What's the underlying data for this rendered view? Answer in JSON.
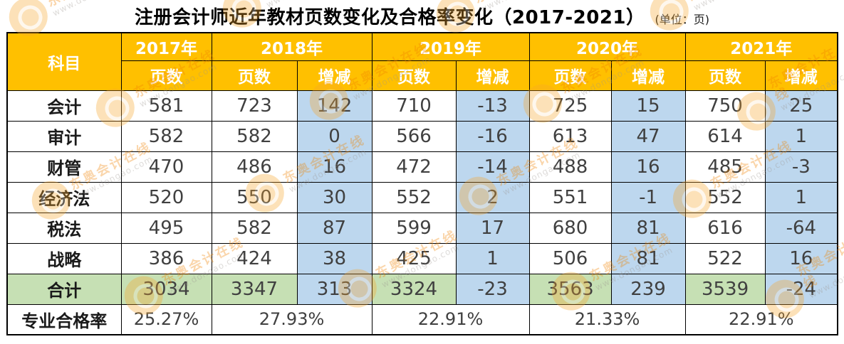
{
  "chart_data": {
    "type": "table",
    "title": "注册会计师近年教材页数变化及合格率变化（2017-2021）",
    "unit_note": "(单位：页)",
    "subject_header": "科目",
    "years": [
      {
        "label": "2017年",
        "columns": [
          "页数"
        ]
      },
      {
        "label": "2018年",
        "columns": [
          "页数",
          "增减"
        ]
      },
      {
        "label": "2019年",
        "columns": [
          "页数",
          "增减"
        ]
      },
      {
        "label": "2020年",
        "columns": [
          "页数",
          "增减"
        ]
      },
      {
        "label": "2021年",
        "columns": [
          "页数",
          "增减"
        ]
      }
    ],
    "column_order": [
      "科目",
      "2017年页数",
      "2018年页数",
      "2018年增减",
      "2019年页数",
      "2019年增减",
      "2020年页数",
      "2020年增减",
      "2021年页数",
      "2021年增减"
    ],
    "rows": [
      {
        "subject": "会计",
        "values": [
          "581",
          "723",
          "142",
          "710",
          "-13",
          "725",
          "15",
          "750",
          "25"
        ]
      },
      {
        "subject": "审计",
        "values": [
          "582",
          "582",
          "0",
          "566",
          "-16",
          "613",
          "47",
          "614",
          "1"
        ]
      },
      {
        "subject": "财管",
        "values": [
          "470",
          "486",
          "16",
          "472",
          "-14",
          "488",
          "16",
          "485",
          "-3"
        ]
      },
      {
        "subject": "经济法",
        "values": [
          "520",
          "550",
          "30",
          "552",
          "2",
          "551",
          "-1",
          "552",
          "1"
        ]
      },
      {
        "subject": "税法",
        "values": [
          "495",
          "582",
          "87",
          "599",
          "17",
          "680",
          "81",
          "616",
          "-64"
        ]
      },
      {
        "subject": "战略",
        "values": [
          "386",
          "424",
          "38",
          "425",
          "1",
          "506",
          "81",
          "522",
          "16"
        ]
      }
    ],
    "total_row": {
      "subject": "合计",
      "values": [
        "3034",
        "3347",
        "313",
        "3324",
        "-23",
        "3563",
        "239",
        "3539",
        "-24"
      ]
    },
    "pass_rate_row": {
      "subject": "专业合格率",
      "values": [
        "25.27%",
        "27.93%",
        "22.91%",
        "21.33%",
        "22.91%"
      ]
    }
  },
  "watermark": {
    "brand": "东奥会计在线",
    "url": "www.dongao.com"
  },
  "colors": {
    "header_bg": "#FFC000",
    "header_text": "#FFFFFF",
    "delta_bg": "#BDD7EE",
    "total_bg": "#C6E0B4",
    "border": "#000000",
    "data_text": "#404040",
    "watermark_orange": "#F08300",
    "watermark_logo": "#F7A62C",
    "watermark_gray": "#9B948E"
  }
}
